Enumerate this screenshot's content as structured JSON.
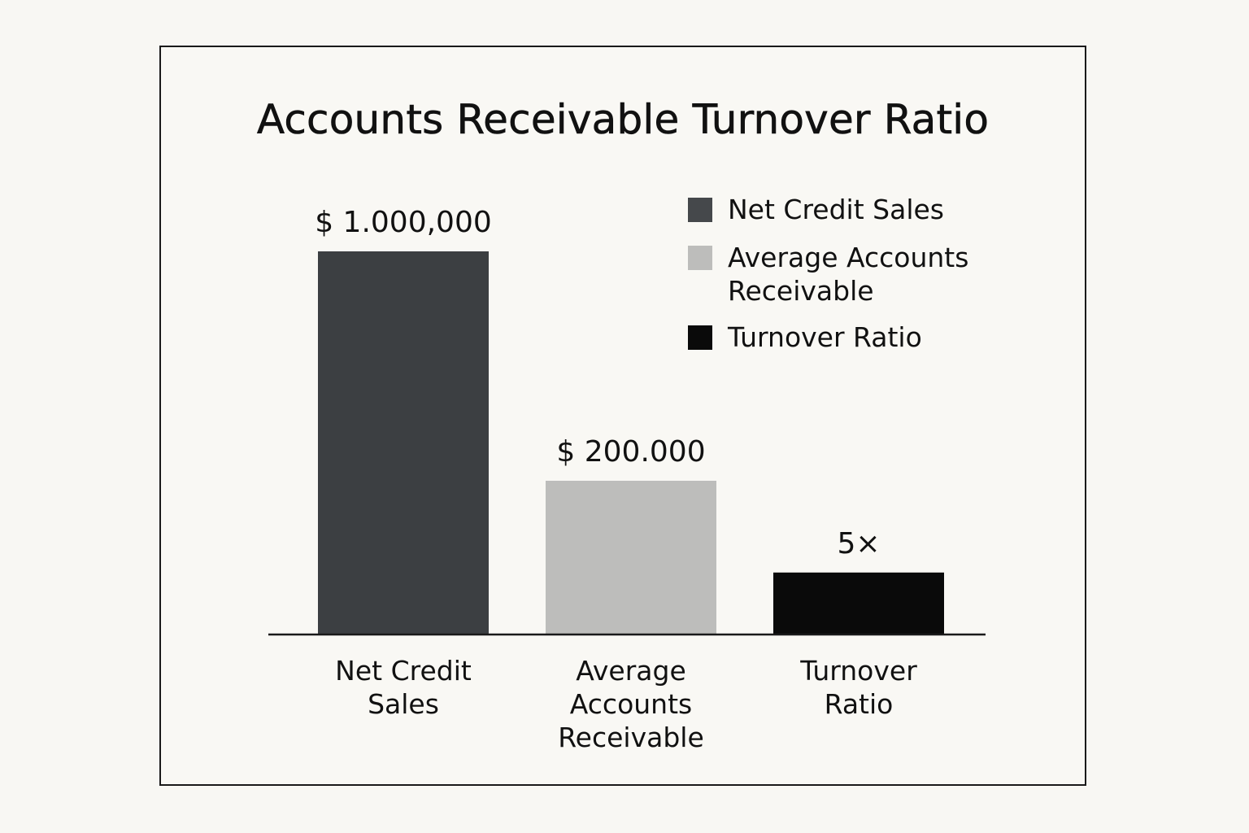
{
  "chart_data": {
    "type": "bar",
    "title": "Accounts Receivable Turnover Ratio",
    "categories": [
      [
        "Net Credit",
        "Sales"
      ],
      [
        "Average",
        "Accounts",
        "Receivable"
      ],
      [
        "Turnover",
        "Ratio"
      ]
    ],
    "bars": [
      {
        "category": "Net Credit Sales",
        "label": "$ 1.000,000",
        "relative_height": 1.0,
        "color": "#3c3f42"
      },
      {
        "category": "Average Accounts Receivable",
        "label": "$ 200.000",
        "relative_height": 0.4,
        "color": "#bdbdbb"
      },
      {
        "category": "Turnover Ratio",
        "label": "5×",
        "relative_height": 0.16,
        "color": "#0a0a0a"
      }
    ],
    "legend": {
      "placement": "top-right",
      "entries": [
        {
          "lines": [
            "Net Credit Sales"
          ],
          "color": "#45484b"
        },
        {
          "lines": [
            "Average Accounts",
            "Receivable"
          ],
          "color": "#bdbdbb"
        },
        {
          "lines": [
            "Turnover Ratio"
          ],
          "color": "#0a0a0a"
        }
      ]
    },
    "grid": false,
    "xlabel": "",
    "ylabel": ""
  }
}
